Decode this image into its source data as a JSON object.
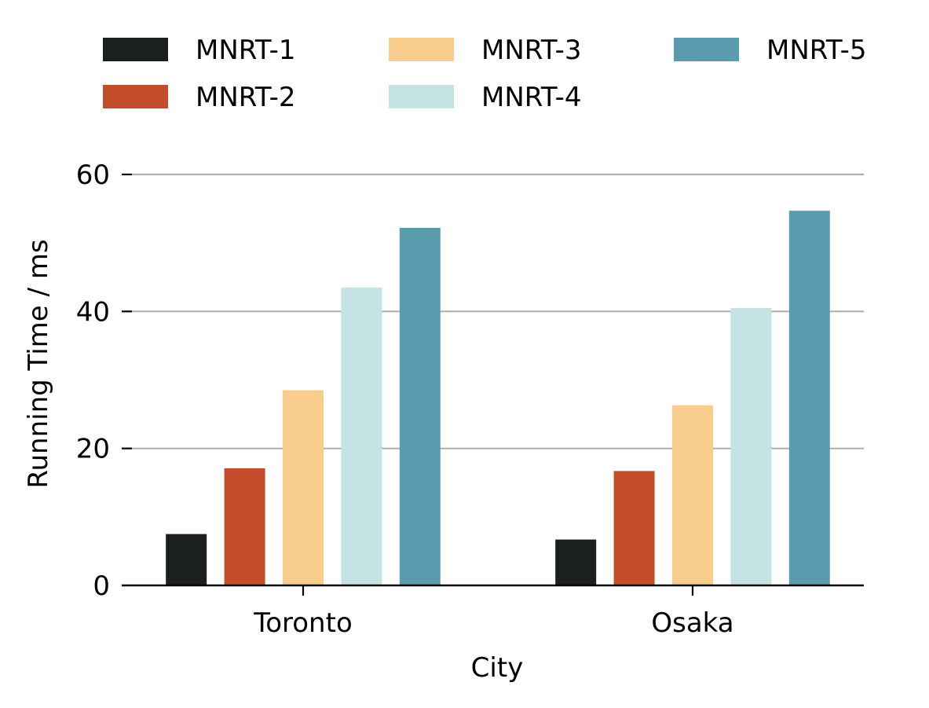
{
  "chart_data": {
    "type": "bar",
    "categories": [
      "Toronto",
      "Osaka"
    ],
    "series": [
      {
        "name": "MNRT-1",
        "color": "#1b1f1f",
        "values": [
          7.5,
          6.7
        ]
      },
      {
        "name": "MNRT-2",
        "color": "#c54c2b",
        "values": [
          17.1,
          16.7
        ]
      },
      {
        "name": "MNRT-3",
        "color": "#f9cd8c",
        "values": [
          28.5,
          26.3
        ]
      },
      {
        "name": "MNRT-4",
        "color": "#c5e3e4",
        "values": [
          43.5,
          40.5
        ]
      },
      {
        "name": "MNRT-5",
        "color": "#5a9cad",
        "values": [
          52.2,
          54.7
        ]
      }
    ],
    "xlabel": "City",
    "ylabel": "Running Time / ms",
    "ylim": [
      0,
      60
    ],
    "yticks": [
      0,
      20,
      40,
      60
    ],
    "grid": "horizontal",
    "grid_color": "#b0b0b0",
    "legend": "top"
  }
}
